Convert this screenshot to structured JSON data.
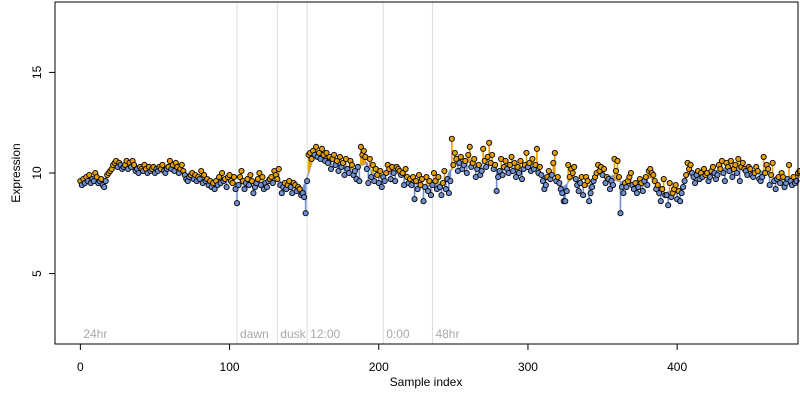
{
  "chart_data": {
    "type": "scatter",
    "xlabel": "Sample index",
    "ylabel": "Expression",
    "xlim": [
      -17,
      481
    ],
    "ylim": [
      1.5,
      18.5
    ],
    "x_ticks": [
      0,
      100,
      200,
      300,
      400
    ],
    "y_ticks": [
      5,
      10,
      15
    ],
    "phase_lines": [
      {
        "x": 0,
        "label": "24hr",
        "line": false
      },
      {
        "x": 105,
        "label": "dawn",
        "line": true
      },
      {
        "x": 132,
        "label": "dusk",
        "line": true
      },
      {
        "x": 152,
        "label": "12:00",
        "line": true
      },
      {
        "x": 203,
        "label": "0:00",
        "line": true
      },
      {
        "x": 236,
        "label": "48hr",
        "line": true
      }
    ],
    "colors": {
      "above": "#E69F00",
      "below": "#6F8FD0",
      "points": "#000000",
      "guide": "#DDDDDD",
      "phase_label": "#A8A8A8"
    },
    "y": [
      9.6,
      9.4,
      9.7,
      9.5,
      9.8,
      9.6,
      9.9,
      9.5,
      9.7,
      9.6,
      10.0,
      9.8,
      9.5,
      9.6,
      9.7,
      9.4,
      9.3,
      9.6,
      9.9,
      10.0,
      10.1,
      10.2,
      10.4,
      10.5,
      10.6,
      10.3,
      10.5,
      10.4,
      10.2,
      10.3,
      10.4,
      10.6,
      10.2,
      10.5,
      10.3,
      10.6,
      10.4,
      10.1,
      10.2,
      10.0,
      10.3,
      10.2,
      10.1,
      10.4,
      10.2,
      10.0,
      10.3,
      10.1,
      10.2,
      10.3,
      10.0,
      10.2,
      10.1,
      10.3,
      10.2,
      10.4,
      10.1,
      10.0,
      10.2,
      10.3,
      10.6,
      10.2,
      10.4,
      10.1,
      10.5,
      10.3,
      10.0,
      10.2,
      10.4,
      10.1,
      9.9,
      9.7,
      9.6,
      9.8,
      9.9,
      10.0,
      9.7,
      9.9,
      9.6,
      9.8,
      9.7,
      10.1,
      9.5,
      9.9,
      9.6,
      9.7,
      9.4,
      9.6,
      9.3,
      9.5,
      9.2,
      9.6,
      9.4,
      9.8,
      9.5,
      10.0,
      9.6,
      9.7,
      9.3,
      9.8,
      9.9,
      9.6,
      9.5,
      9.8,
      9.2,
      8.5,
      9.4,
      9.8,
      10.1,
      9.6,
      9.2,
      9.5,
      9.7,
      9.4,
      9.9,
      9.6,
      9.0,
      9.3,
      9.5,
      9.7,
      10.0,
      9.4,
      9.8,
      9.2,
      9.5,
      9.3,
      9.6,
      9.7,
      9.8,
      9.5,
      10.1,
      9.9,
      9.7,
      10.2,
      9.4,
      9.0,
      9.3,
      9.5,
      9.2,
      9.4,
      9.6,
      9.3,
      9.0,
      9.5,
      9.4,
      9.1,
      9.3,
      9.2,
      8.9,
      9.0,
      8.8,
      8.0,
      9.6,
      10.9,
      11.0,
      10.7,
      11.1,
      10.9,
      11.3,
      10.8,
      11.0,
      10.7,
      11.2,
      10.9,
      10.6,
      11.0,
      10.5,
      10.8,
      10.2,
      10.7,
      10.9,
      10.4,
      10.6,
      10.1,
      10.8,
      10.3,
      10.5,
      9.9,
      10.7,
      10.2,
      10.0,
      10.6,
      10.4,
      9.9,
      10.1,
      9.7,
      10.3,
      9.6,
      11.3,
      10.9,
      11.1,
      10.8,
      10.2,
      9.5,
      10.7,
      9.8,
      10.4,
      9.6,
      10.2,
      9.9,
      9.5,
      10.1,
      9.3,
      9.8,
      9.6,
      10.0,
      10.4,
      10.2,
      9.7,
      10.3,
      10.0,
      9.6,
      10.3,
      10.2,
      10.1,
      9.9,
      10.0,
      9.4,
      10.2,
      9.8,
      9.5,
      9.7,
      9.4,
      9.8,
      8.7,
      9.6,
      9.2,
      9.9,
      9.4,
      9.7,
      8.6,
      9.3,
      9.8,
      9.1,
      9.6,
      8.9,
      9.4,
      10.0,
      9.6,
      9.2,
      9.8,
      9.3,
      8.9,
      9.5,
      10.1,
      9.2,
      9.7,
      9.0,
      9.6,
      11.7,
      10.4,
      11.0,
      10.7,
      10.1,
      10.5,
      10.8,
      10.2,
      10.4,
      10.6,
      10.0,
      10.9,
      11.3,
      10.3,
      10.5,
      10.7,
      9.8,
      10.2,
      10.4,
      9.9,
      10.1,
      11.2,
      10.6,
      10.3,
      10.8,
      11.5,
      10.5,
      10.9,
      10.2,
      10.4,
      9.1,
      9.8,
      10.1,
      10.7,
      9.9,
      10.3,
      10.6,
      10.2,
      10.0,
      10.4,
      10.8,
      10.1,
      10.5,
      9.8,
      10.3,
      10.0,
      10.6,
      9.7,
      10.2,
      10.4,
      11.0,
      10.3,
      10.5,
      10.1,
      10.7,
      10.2,
      10.4,
      11.2,
      10.0,
      10.3,
      9.9,
      9.6,
      9.2,
      9.4,
      9.8,
      10.1,
      9.7,
      9.9,
      10.5,
      11.0,
      9.6,
      9.8,
      9.5,
      9.2,
      9.0,
      8.6,
      8.6,
      9.1,
      10.4,
      9.8,
      10.2,
      10.0,
      10.3,
      9.7,
      9.4,
      9.1,
      9.5,
      9.8,
      8.9,
      9.4,
      9.8,
      9.6,
      8.6,
      9.0,
      9.3,
      9.6,
      9.8,
      10.0,
      10.4,
      10.1,
      10.3,
      9.9,
      10.2,
      9.5,
      9.8,
      9.7,
      9.2,
      9.6,
      9.4,
      10.7,
      10.1,
      10.6,
      9.8,
      8.0,
      9.3,
      9.0,
      9.5,
      9.3,
      9.6,
      9.8,
      10.0,
      9.4,
      9.2,
      9.5,
      9.0,
      9.3,
      9.7,
      9.5,
      9.1,
      9.6,
      9.8,
      9.4,
      10.1,
      10.2,
      10.0,
      9.9,
      9.6,
      9.2,
      9.4,
      9.0,
      8.6,
      9.2,
      9.7,
      8.9,
      8.9,
      8.4,
      9.5,
      8.8,
      9.0,
      9.2,
      9.4,
      8.7,
      9.1,
      8.6,
      9.0,
      9.3,
      9.6,
      9.9,
      10.5,
      10.2,
      10.4,
      10.0,
      9.8,
      9.5,
      9.9,
      10.1,
      9.7,
      10.0,
      9.8,
      10.2,
      9.9,
      10.0,
      9.6,
      9.8,
      10.1,
      10.3,
      10.0,
      9.7,
      9.9,
      10.4,
      10.2,
      10.6,
      10.0,
      9.6,
      10.5,
      10.3,
      10.1,
      10.6,
      9.8,
      10.2,
      10.4,
      10.0,
      10.7,
      9.6,
      10.3,
      10.5,
      10.2,
      10.1,
      9.9,
      10.3,
      10.2,
      9.9,
      9.8,
      10.0,
      10.3,
      10.1,
      9.7,
      9.6,
      9.8,
      10.8,
      10.0,
      10.4,
      10.2,
      9.4,
      9.9,
      10.5,
      9.6,
      9.2,
      9.7,
      9.8,
      9.5,
      10.0,
      9.8,
      9.3,
      9.5,
      9.7,
      10.4,
      9.6,
      9.4,
      9.8,
      9.5,
      9.6,
      10.0,
      10.1
    ]
  }
}
